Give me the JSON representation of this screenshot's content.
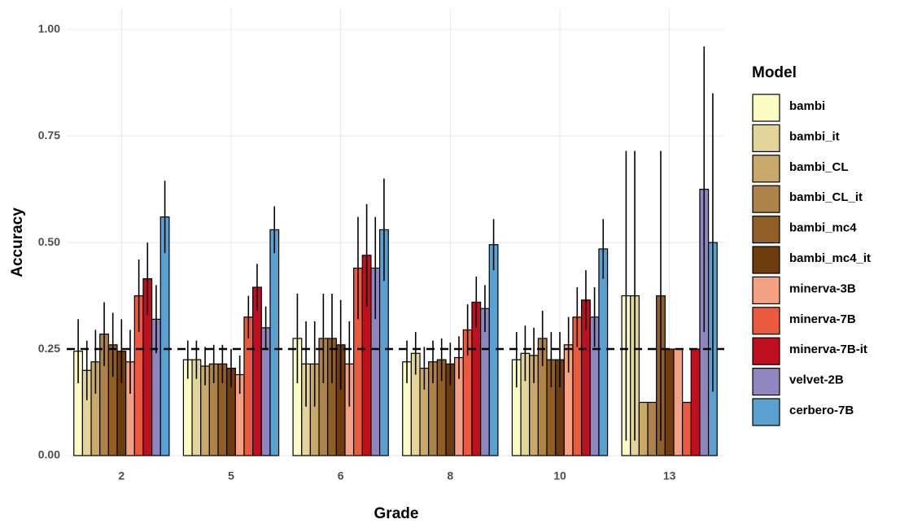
{
  "chart_data": {
    "type": "bar",
    "x_label": "Grade",
    "y_label": "Accuracy",
    "legend_title": "Model",
    "categories": [
      "2",
      "5",
      "6",
      "8",
      "10",
      "13"
    ],
    "ylim": [
      0,
      1.05
    ],
    "yticks": [
      {
        "value": 0,
        "label": "0.00"
      },
      {
        "value": 0.25,
        "label": "0.25"
      },
      {
        "value": 0.5,
        "label": "0.50"
      },
      {
        "value": 0.75,
        "label": "0.75"
      },
      {
        "value": 1,
        "label": "1.00"
      }
    ],
    "grid": true,
    "legend_position": "right",
    "reference_line": 0.25,
    "series": [
      {
        "name": "bambi",
        "color": "#fdfbc4",
        "values": [
          0.245,
          0.225,
          0.275,
          0.22,
          0.225,
          0.375
        ],
        "errors": [
          0.075,
          0.045,
          0.105,
          0.05,
          0.065,
          0.34
        ]
      },
      {
        "name": "bambi_it",
        "color": "#e3d59a",
        "values": [
          0.2,
          0.225,
          0.215,
          0.24,
          0.24,
          0.375
        ],
        "errors": [
          0.07,
          0.045,
          0.1,
          0.05,
          0.065,
          0.34
        ]
      },
      {
        "name": "bambi_CL",
        "color": "#c9a96a",
        "values": [
          0.22,
          0.21,
          0.215,
          0.205,
          0.235,
          0.125
        ],
        "errors": [
          0.075,
          0.045,
          0.1,
          0.05,
          0.065,
          0
        ]
      },
      {
        "name": "bambi_CL_it",
        "color": "#ad834a",
        "values": [
          0.285,
          0.215,
          0.275,
          0.22,
          0.275,
          0.125
        ],
        "errors": [
          0.075,
          0.045,
          0.105,
          0.05,
          0.065,
          0
        ]
      },
      {
        "name": "bambi_mc4",
        "color": "#915e26",
        "values": [
          0.26,
          0.215,
          0.275,
          0.225,
          0.225,
          0.375
        ],
        "errors": [
          0.075,
          0.045,
          0.105,
          0.05,
          0.065,
          0.34
        ]
      },
      {
        "name": "bambi_mc4_it",
        "color": "#6e3d0e",
        "values": [
          0.245,
          0.205,
          0.26,
          0.215,
          0.225,
          0.25
        ],
        "errors": [
          0.075,
          0.045,
          0.105,
          0.05,
          0.065,
          0
        ]
      },
      {
        "name": "minerva-3B",
        "color": "#f4a083",
        "values": [
          0.22,
          0.19,
          0.215,
          0.23,
          0.26,
          0.25
        ],
        "errors": [
          0.075,
          0.045,
          0.1,
          0.05,
          0.065,
          0
        ]
      },
      {
        "name": "minerva-7B",
        "color": "#ea5a3e",
        "values": [
          0.375,
          0.325,
          0.44,
          0.295,
          0.325,
          0.125
        ],
        "errors": [
          0.085,
          0.05,
          0.12,
          0.06,
          0.07,
          0
        ]
      },
      {
        "name": "minerva-7B-it",
        "color": "#c0101f",
        "values": [
          0.415,
          0.395,
          0.47,
          0.36,
          0.365,
          0.25
        ],
        "errors": [
          0.085,
          0.055,
          0.12,
          0.06,
          0.07,
          0
        ]
      },
      {
        "name": "velvet-2B",
        "color": "#8f86c0",
        "values": [
          0.32,
          0.3,
          0.44,
          0.345,
          0.325,
          0.625
        ],
        "errors": [
          0.08,
          0.05,
          0.12,
          0.055,
          0.07,
          0.335
        ]
      },
      {
        "name": "cerbero-7B",
        "color": "#5aa0d0",
        "values": [
          0.56,
          0.53,
          0.53,
          0.495,
          0.485,
          0.5
        ],
        "errors": [
          0.085,
          0.055,
          0.12,
          0.06,
          0.07,
          0.35
        ]
      }
    ]
  }
}
